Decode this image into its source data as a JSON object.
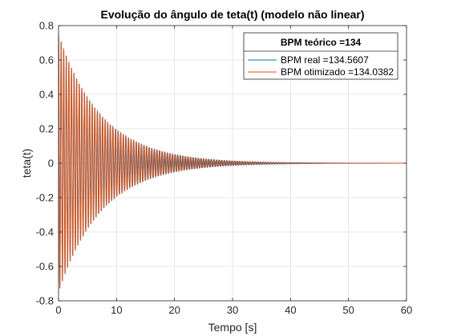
{
  "chart_data": {
    "type": "line",
    "title": "Evolução do ângulo de teta(t) (modelo não linear)",
    "xlabel": "Tempo [s]",
    "ylabel": "teta(t)",
    "xlim": [
      0,
      60
    ],
    "ylim": [
      -0.8,
      0.8
    ],
    "xticks": [
      0,
      10,
      20,
      30,
      40,
      50,
      60
    ],
    "xtick_labels": [
      "0",
      "10",
      "20",
      "30",
      "40",
      "50",
      "60"
    ],
    "yticks": [
      -0.8,
      -0.6,
      -0.4,
      -0.2,
      0,
      0.2,
      0.4,
      0.6,
      0.8
    ],
    "ytick_labels": [
      "-0.8",
      "-0.6",
      "-0.4",
      "-0.2",
      "0",
      "0.2",
      "0.4",
      "0.6",
      "0.8"
    ],
    "grid": true,
    "legend": {
      "title": "BPM teórico =134",
      "placement": "top-right"
    },
    "series": [
      {
        "name": "BPM real =134.5607",
        "color": "#0072bd",
        "bpm": 134.5607,
        "amplitude": 0.75,
        "decay_per_s": 0.135
      },
      {
        "name": "BPM otimizado =134.0382",
        "color": "#d95319",
        "bpm": 134.0382,
        "amplitude": 0.75,
        "decay_per_s": 0.135
      }
    ]
  }
}
